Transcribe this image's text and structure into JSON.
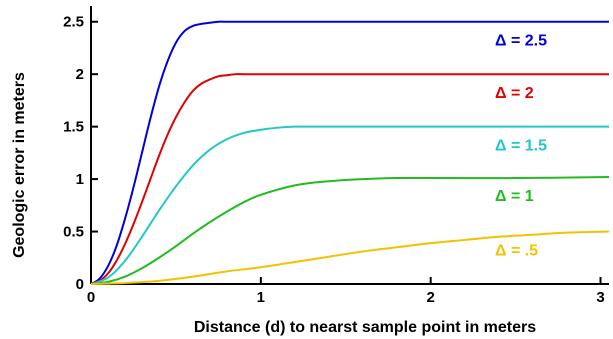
{
  "chart_data": {
    "type": "line",
    "title": "",
    "xlabel": "Distance (d) to nearst sample point in meters",
    "ylabel": "Geologic error in meters",
    "xlim": [
      0,
      3.05
    ],
    "ylim": [
      0,
      2.65
    ],
    "xticks": [
      {
        "value": 0,
        "label": "0"
      },
      {
        "value": 1,
        "label": "1"
      },
      {
        "value": 2,
        "label": "2"
      },
      {
        "value": 3,
        "label": "3"
      }
    ],
    "yticks": [
      {
        "value": 0,
        "label": "0"
      },
      {
        "value": 0.5,
        "label": "0.5"
      },
      {
        "value": 1,
        "label": "1"
      },
      {
        "value": 1.5,
        "label": "1.5"
      },
      {
        "value": 2,
        "label": "2"
      },
      {
        "value": 2.5,
        "label": "2.5"
      }
    ],
    "grid": false,
    "legend": "inline labels at right end of each curve",
    "series": [
      {
        "name": "Δ = 2.5",
        "color": "#0000dd",
        "x": [
          0,
          0.05,
          0.1,
          0.15,
          0.2,
          0.25,
          0.3,
          0.35,
          0.4,
          0.45,
          0.5,
          0.55,
          0.6,
          0.65,
          0.7,
          0.75,
          0.8,
          0.9,
          1.0,
          1.5,
          2.0,
          2.5,
          3.05
        ],
        "y": [
          0,
          0.05,
          0.17,
          0.36,
          0.62,
          0.92,
          1.25,
          1.58,
          1.88,
          2.12,
          2.3,
          2.41,
          2.46,
          2.48,
          2.49,
          2.5,
          2.5,
          2.5,
          2.5,
          2.5,
          2.5,
          2.5,
          2.5
        ]
      },
      {
        "name": "Δ = 2",
        "color": "#e00000",
        "x": [
          0,
          0.05,
          0.1,
          0.15,
          0.2,
          0.25,
          0.3,
          0.35,
          0.4,
          0.45,
          0.5,
          0.55,
          0.6,
          0.65,
          0.7,
          0.75,
          0.8,
          0.85,
          0.9,
          1.0,
          1.5,
          2.0,
          2.5,
          3.05
        ],
        "y": [
          0,
          0.03,
          0.1,
          0.22,
          0.38,
          0.57,
          0.78,
          1.0,
          1.22,
          1.42,
          1.59,
          1.73,
          1.84,
          1.91,
          1.95,
          1.98,
          1.99,
          2.0,
          2.0,
          2.0,
          2.0,
          2.0,
          2.0,
          2.0
        ]
      },
      {
        "name": "Δ = 1.5",
        "color": "#22c8c8",
        "x": [
          0,
          0.1,
          0.2,
          0.3,
          0.4,
          0.5,
          0.6,
          0.7,
          0.8,
          0.9,
          1.0,
          1.1,
          1.2,
          1.3,
          1.5,
          2.0,
          2.5,
          3.05
        ],
        "y": [
          0,
          0.06,
          0.22,
          0.45,
          0.7,
          0.93,
          1.13,
          1.28,
          1.38,
          1.44,
          1.47,
          1.49,
          1.5,
          1.5,
          1.5,
          1.5,
          1.5,
          1.5
        ]
      },
      {
        "name": "Δ = 1",
        "color": "#22bb22",
        "x": [
          0,
          0.1,
          0.2,
          0.3,
          0.4,
          0.5,
          0.6,
          0.7,
          0.8,
          0.9,
          1.0,
          1.2,
          1.4,
          1.6,
          1.8,
          2.0,
          2.5,
          3.05
        ],
        "y": [
          0,
          0.02,
          0.07,
          0.15,
          0.25,
          0.36,
          0.48,
          0.59,
          0.69,
          0.78,
          0.85,
          0.94,
          0.98,
          1.0,
          1.01,
          1.01,
          1.01,
          1.02
        ]
      },
      {
        "name": "Δ = .5",
        "color": "#f2c200",
        "x": [
          0,
          0.2,
          0.4,
          0.6,
          0.8,
          1.0,
          1.2,
          1.4,
          1.6,
          1.8,
          2.0,
          2.2,
          2.4,
          2.6,
          2.8,
          3.05
        ],
        "y": [
          0,
          0.01,
          0.03,
          0.07,
          0.12,
          0.16,
          0.21,
          0.26,
          0.31,
          0.35,
          0.39,
          0.42,
          0.45,
          0.47,
          0.49,
          0.5
        ]
      }
    ]
  }
}
